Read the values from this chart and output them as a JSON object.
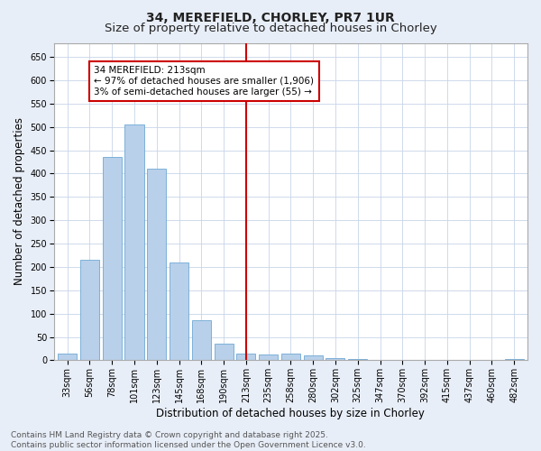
{
  "title1": "34, MEREFIELD, CHORLEY, PR7 1UR",
  "title2": "Size of property relative to detached houses in Chorley",
  "xlabel": "Distribution of detached houses by size in Chorley",
  "ylabel": "Number of detached properties",
  "categories": [
    "33sqm",
    "56sqm",
    "78sqm",
    "101sqm",
    "123sqm",
    "145sqm",
    "168sqm",
    "190sqm",
    "213sqm",
    "235sqm",
    "258sqm",
    "280sqm",
    "302sqm",
    "325sqm",
    "347sqm",
    "370sqm",
    "392sqm",
    "415sqm",
    "437sqm",
    "460sqm",
    "482sqm"
  ],
  "values": [
    15,
    215,
    435,
    505,
    410,
    210,
    85,
    35,
    15,
    13,
    15,
    10,
    5,
    3,
    1,
    1,
    0,
    1,
    0,
    0,
    3
  ],
  "bar_color": "#b8d0ea",
  "bar_edge_color": "#6fa8d4",
  "vline_x_idx": 8,
  "vline_color": "#cc0000",
  "annotation_text": "34 MEREFIELD: 213sqm\n← 97% of detached houses are smaller (1,906)\n3% of semi-detached houses are larger (55) →",
  "annotation_box_color": "#ffffff",
  "annotation_box_edge": "#cc0000",
  "ylim": [
    0,
    680
  ],
  "yticks": [
    0,
    50,
    100,
    150,
    200,
    250,
    300,
    350,
    400,
    450,
    500,
    550,
    600,
    650
  ],
  "footer": "Contains HM Land Registry data © Crown copyright and database right 2025.\nContains public sector information licensed under the Open Government Licence v3.0.",
  "bg_color": "#e8eef8",
  "plot_bg_color": "#ffffff",
  "title1_fontsize": 10,
  "title2_fontsize": 9.5,
  "axis_label_fontsize": 8.5,
  "tick_fontsize": 7,
  "annotation_fontsize": 7.5,
  "footer_fontsize": 6.5,
  "grid_color": "#c8d4e8"
}
